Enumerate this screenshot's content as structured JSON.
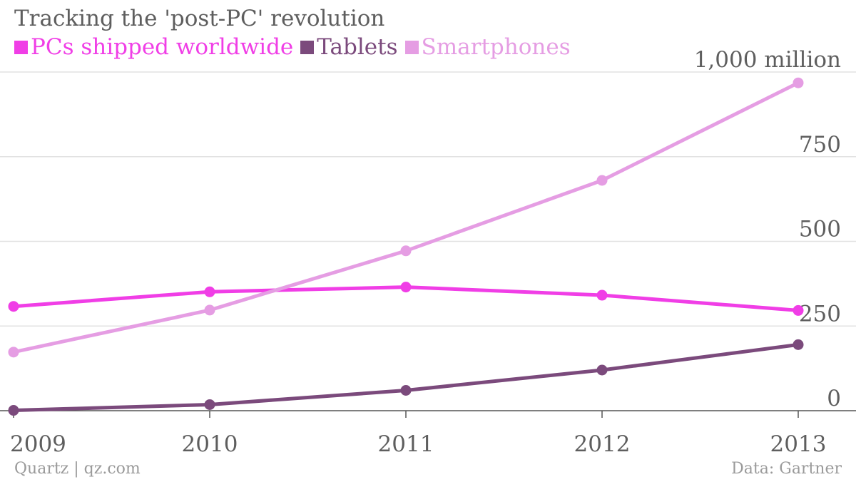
{
  "chart_data": {
    "type": "line",
    "title": "Tracking the 'post-PC' revolution",
    "x": [
      "2009",
      "2010",
      "2011",
      "2012",
      "2013"
    ],
    "series": [
      {
        "name": "PCs shipped worldwide",
        "color": "#f03ee6",
        "values": [
          308,
          351,
          365,
          341,
          296
        ]
      },
      {
        "name": "Tablets",
        "color": "#7b4a7c",
        "values": [
          1,
          18,
          60,
          120,
          195
        ]
      },
      {
        "name": "Smartphones",
        "color": "#e59de3",
        "values": [
          173,
          297,
          472,
          680,
          968
        ]
      }
    ],
    "yticks": [
      0,
      250,
      500,
      750,
      1000
    ],
    "ytick_labels": [
      "0",
      "250",
      "500",
      "750",
      "1,000 million"
    ],
    "ylim": [
      0,
      1000
    ],
    "grid": true,
    "source": "Data: Gartner",
    "credit": "Quartz | qz.com"
  }
}
